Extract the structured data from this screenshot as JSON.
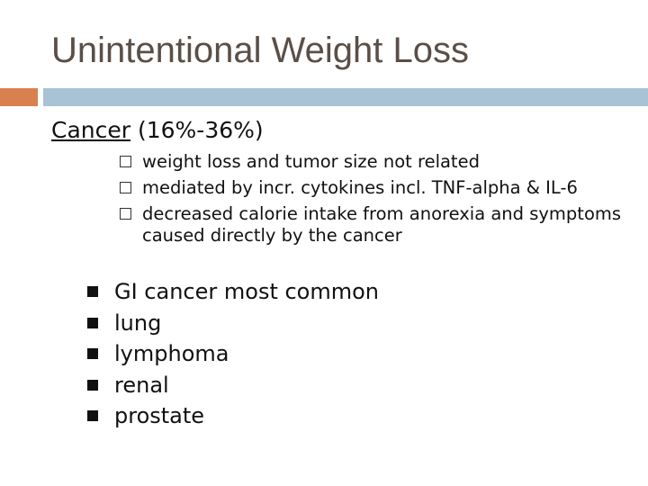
{
  "title": "Unintentional Weight Loss",
  "heading": {
    "term": "Cancer",
    "range": "(16%-36%)"
  },
  "sub_bullets": [
    "weight loss and tumor size not related",
    "mediated by incr. cytokines incl. TNF-alpha & IL-6",
    "decreased calorie intake from anorexia and symptoms caused directly by the cancer"
  ],
  "bullets": [
    "GI cancer most common",
    "lung",
    "lymphoma",
    "renal",
    "prostate"
  ]
}
